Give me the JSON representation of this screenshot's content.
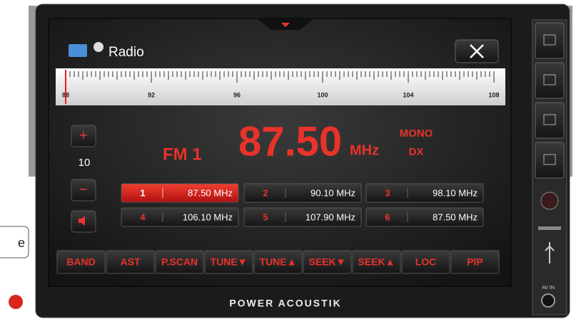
{
  "header": {
    "title": "Radio"
  },
  "scale": {
    "labels": [
      "88",
      "92",
      "96",
      "100",
      "104",
      "108"
    ]
  },
  "volume": {
    "increase": "+",
    "level": "10",
    "decrease": "−"
  },
  "band": "FM 1",
  "frequency": {
    "value": "87.50",
    "unit": "MHz"
  },
  "status": [
    "MONO",
    "DX"
  ],
  "presets": [
    {
      "number": "1",
      "frequency": "87.50 MHz"
    },
    {
      "number": "2",
      "frequency": "90.10 MHz"
    },
    {
      "number": "3",
      "frequency": "98.10 MHz"
    },
    {
      "number": "4",
      "frequency": "106.10 MHz"
    },
    {
      "number": "5",
      "frequency": "107.90 MHz"
    },
    {
      "number": "6",
      "frequency": "87.50 MHz"
    }
  ],
  "buttons": [
    "BAND",
    "AST",
    "P.SCAN",
    "TUNE▼",
    "TUNE▲",
    "SEEK▼",
    "SEEK▲",
    "LOC",
    "PIP"
  ],
  "brand": "POWER ACOUSTIK",
  "av_label": "AV IN",
  "edge_text": "e"
}
